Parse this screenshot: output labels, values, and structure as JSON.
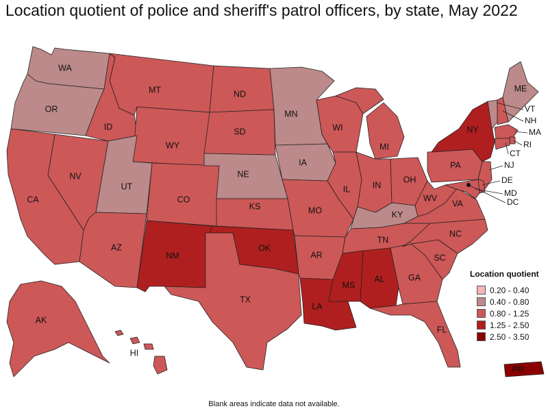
{
  "title": "Location quotient of police and sheriff's patrol officers, by state, May 2022",
  "note": "Blank areas indicate data not available.",
  "legend": {
    "title": "Location quotient",
    "items": [
      {
        "label": "0.20 - 0.40",
        "color": "#f4b6b6"
      },
      {
        "label": "0.40 - 0.80",
        "color": "#bc8a8a"
      },
      {
        "label": "0.80 - 1.25",
        "color": "#cd5858"
      },
      {
        "label": "1.25 - 2.50",
        "color": "#b01f1f"
      },
      {
        "label": "2.50 - 3.50",
        "color": "#8b0000"
      }
    ]
  },
  "states": {
    "WA": "0.40 - 0.80",
    "OR": "0.40 - 0.80",
    "CA": "0.80 - 1.25",
    "ID": "0.80 - 1.25",
    "NV": "0.80 - 1.25",
    "UT": "0.40 - 0.80",
    "AZ": "0.80 - 1.25",
    "MT": "0.80 - 1.25",
    "WY": "0.80 - 1.25",
    "CO": "0.80 - 1.25",
    "NM": "1.25 - 2.50",
    "ND": "0.80 - 1.25",
    "SD": "0.80 - 1.25",
    "NE": "0.40 - 0.80",
    "KS": "0.80 - 1.25",
    "OK": "1.25 - 2.50",
    "TX": "0.80 - 1.25",
    "MN": "0.40 - 0.80",
    "IA": "0.40 - 0.80",
    "MO": "0.80 - 1.25",
    "AR": "0.80 - 1.25",
    "LA": "1.25 - 2.50",
    "WI": "0.80 - 1.25",
    "IL": "0.80 - 1.25",
    "MI": "0.80 - 1.25",
    "IN": "0.80 - 1.25",
    "OH": "0.80 - 1.25",
    "KY": "0.40 - 0.80",
    "TN": "0.80 - 1.25",
    "MS": "1.25 - 2.50",
    "AL": "1.25 - 2.50",
    "GA": "0.80 - 1.25",
    "FL": "0.80 - 1.25",
    "SC": "0.80 - 1.25",
    "NC": "0.80 - 1.25",
    "VA": "0.80 - 1.25",
    "WV": "0.80 - 1.25",
    "PA": "0.80 - 1.25",
    "NY": "1.25 - 2.50",
    "VT": "0.40 - 0.80",
    "NH": "0.80 - 1.25",
    "ME": "0.40 - 0.80",
    "MA": "0.80 - 1.25",
    "RI": "0.80 - 1.25",
    "CT": "0.80 - 1.25",
    "NJ": "0.80 - 1.25",
    "DE": "0.80 - 1.25",
    "MD": "0.80 - 1.25",
    "DC": "0.80 - 1.25",
    "AK": "0.80 - 1.25",
    "HI": "0.80 - 1.25",
    "PR": "2.50 - 3.50"
  }
}
